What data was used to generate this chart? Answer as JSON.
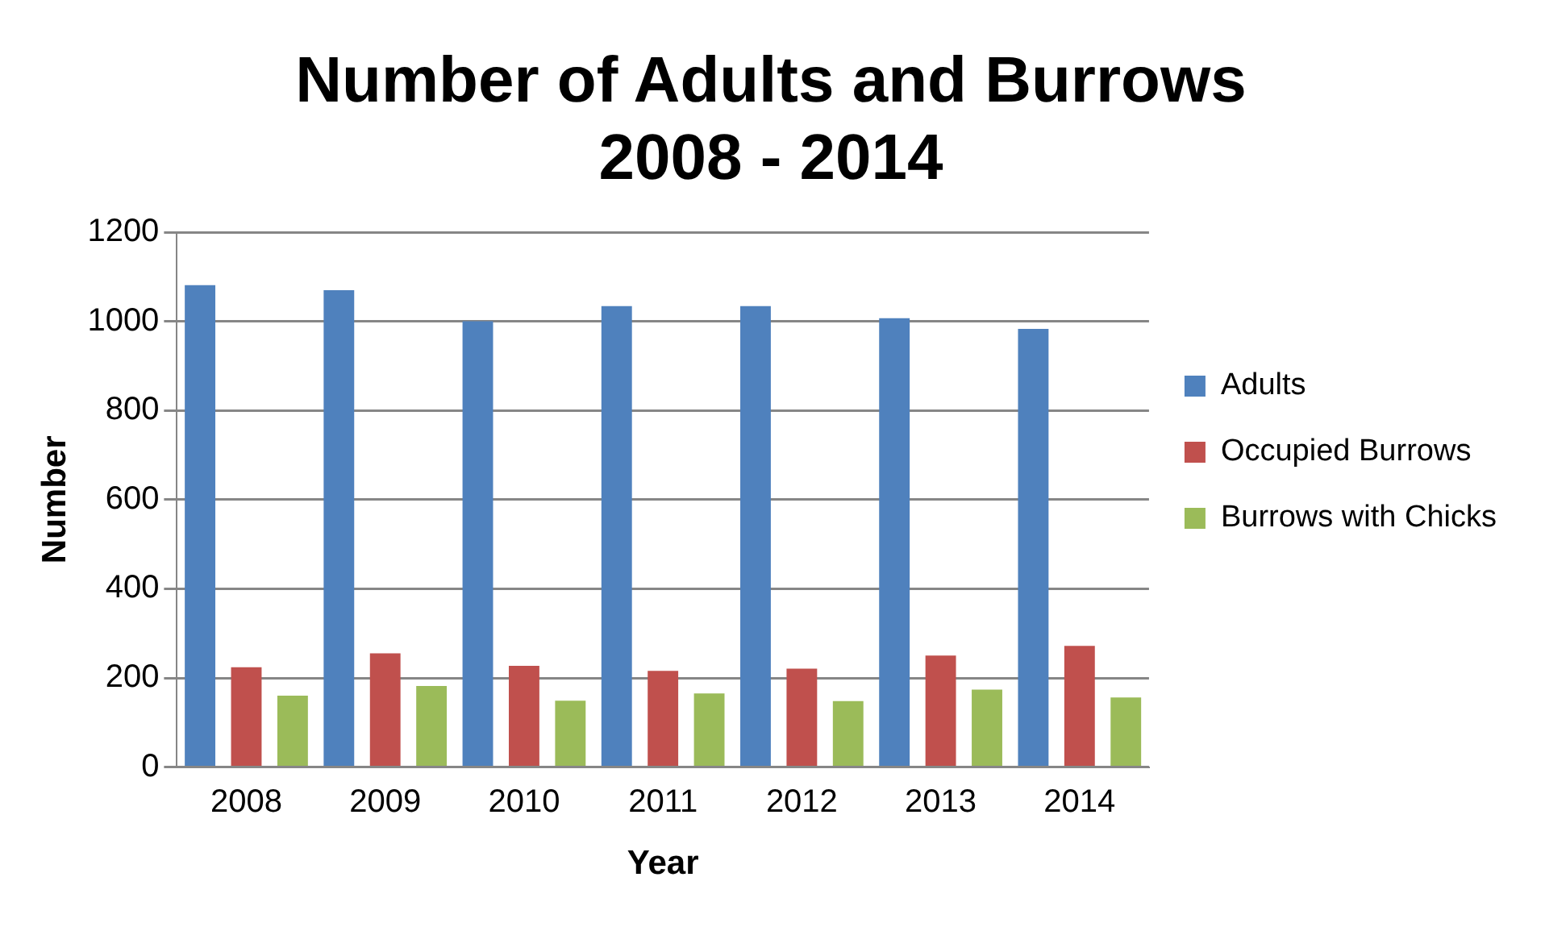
{
  "chart_data": {
    "type": "bar",
    "title": "Number of Adults and Burrows\n2008 - 2014",
    "xlabel": "Year",
    "ylabel": "Number",
    "categories": [
      "2008",
      "2009",
      "2010",
      "2011",
      "2012",
      "2013",
      "2014"
    ],
    "series": [
      {
        "name": "Adults",
        "color": "#4f81bd",
        "values": [
          1081,
          1070,
          1000,
          1034,
          1034,
          1007,
          983
        ]
      },
      {
        "name": "Occupied Burrows",
        "color": "#c0504d",
        "values": [
          224,
          255,
          227,
          216,
          221,
          250,
          272
        ]
      },
      {
        "name": "Burrows with Chicks",
        "color": "#9bbb59",
        "values": [
          160,
          182,
          149,
          165,
          148,
          174,
          156
        ]
      }
    ],
    "ylim": [
      0,
      1200
    ],
    "yticks": [
      0,
      200,
      400,
      600,
      800,
      1000,
      1200
    ],
    "grid": "y",
    "legend": "right"
  }
}
